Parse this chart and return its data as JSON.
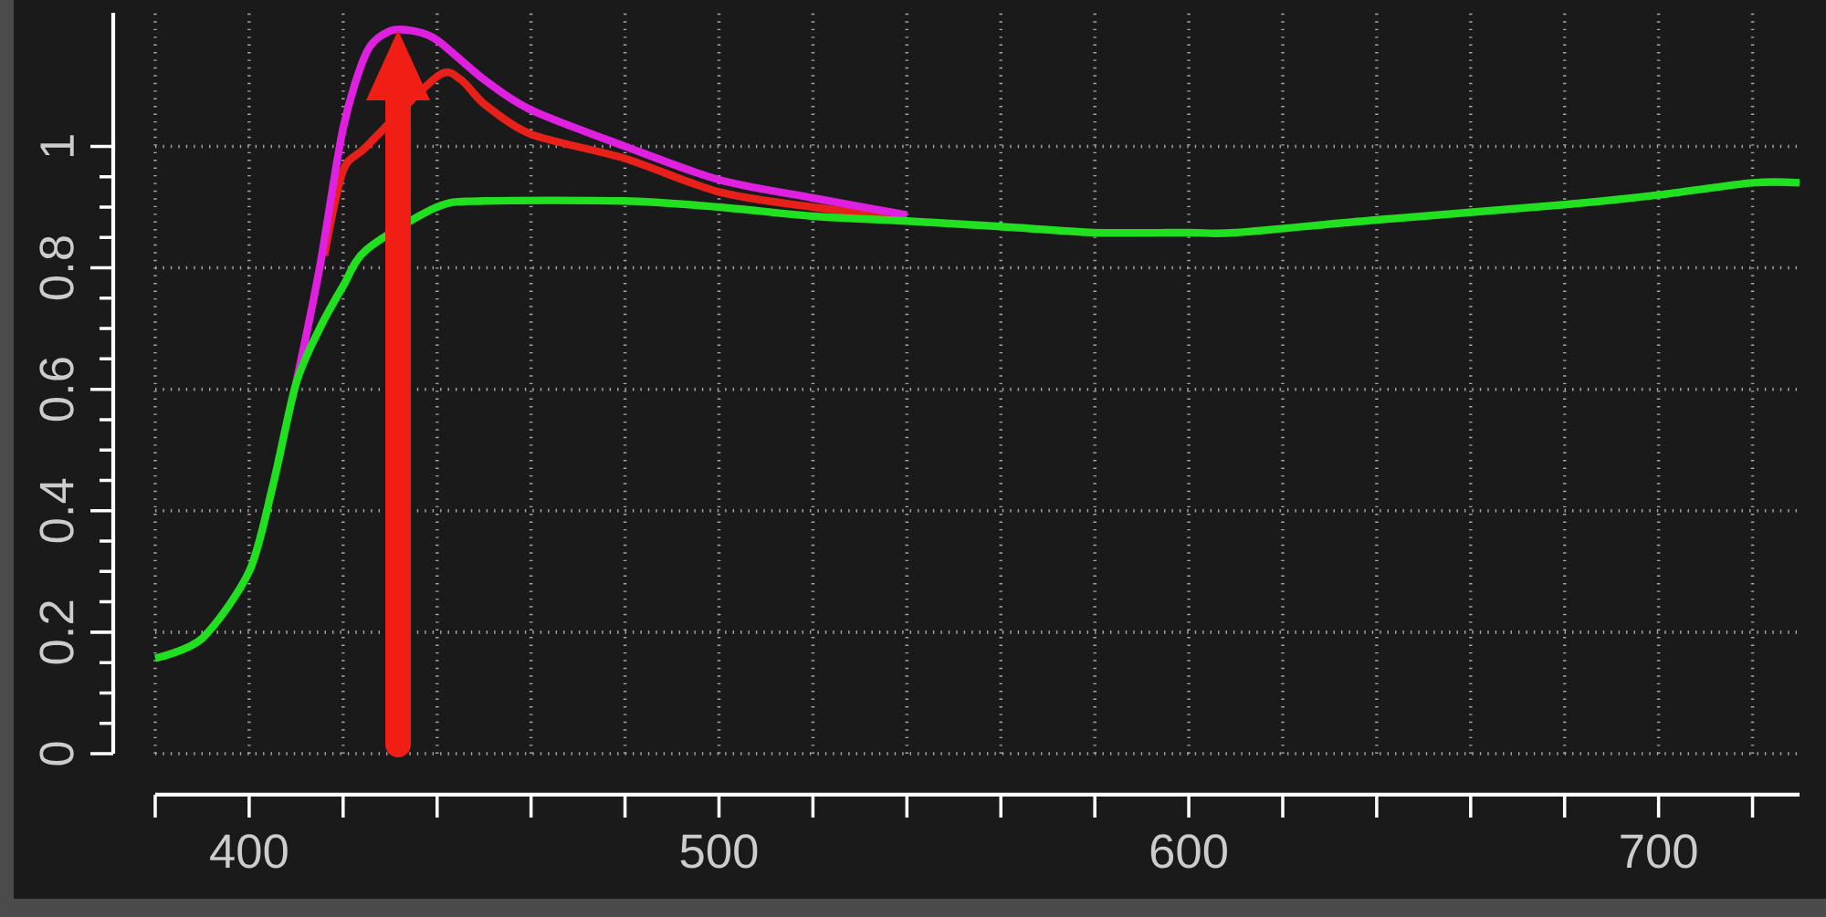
{
  "chart_data": {
    "type": "line",
    "xlim": [
      380,
      730
    ],
    "ylim": [
      0,
      1.22
    ],
    "xticks": [
      {
        "value": 380,
        "label": null
      },
      400,
      {
        "value": 420,
        "label": null
      },
      {
        "value": 440,
        "label": null
      },
      {
        "value": 460,
        "label": null
      },
      {
        "value": 480,
        "label": null
      },
      500,
      {
        "value": 520,
        "label": null
      },
      {
        "value": 540,
        "label": null
      },
      {
        "value": 560,
        "label": null
      },
      {
        "value": 580,
        "label": null
      },
      600,
      {
        "value": 620,
        "label": null
      },
      {
        "value": 640,
        "label": null
      },
      {
        "value": 660,
        "label": null
      },
      {
        "value": 680,
        "label": null
      },
      700,
      {
        "value": 720,
        "label": null
      }
    ],
    "yticks": [
      0,
      0.2,
      0.4,
      0.6,
      0.8,
      1
    ],
    "grid": true,
    "line_style": "solid",
    "marker": "none",
    "series": [
      {
        "color": "#e8201a",
        "x": [
          416,
          420,
          425,
          440,
          445,
          450,
          460,
          480,
          500,
          520,
          540
        ],
        "values": [
          0.82,
          0.96,
          1.0,
          1.115,
          1.11,
          1.07,
          1.02,
          0.98,
          0.925,
          0.9,
          0.883
        ]
      },
      {
        "color": "#e020e0",
        "x": [
          410,
          415,
          420,
          425,
          430,
          435,
          440,
          450,
          460,
          480,
          500,
          520,
          540
        ],
        "values": [
          0.61,
          0.8,
          1.03,
          1.155,
          1.19,
          1.19,
          1.175,
          1.11,
          1.06,
          1.0,
          0.945,
          0.915,
          0.887
        ]
      },
      {
        "color": "#20e020",
        "x": [
          380,
          390,
          400,
          405,
          410,
          415,
          420,
          425,
          440,
          450,
          480,
          500,
          520,
          540,
          560,
          580,
          600,
          610,
          640,
          680,
          700,
          720,
          730
        ],
        "values": [
          0.157,
          0.19,
          0.3,
          0.44,
          0.61,
          0.7,
          0.77,
          0.83,
          0.9,
          0.91,
          0.91,
          0.9,
          0.885,
          0.877,
          0.868,
          0.858,
          0.858,
          0.858,
          0.879,
          0.904,
          0.92,
          0.94,
          0.94
        ]
      }
    ]
  }
}
